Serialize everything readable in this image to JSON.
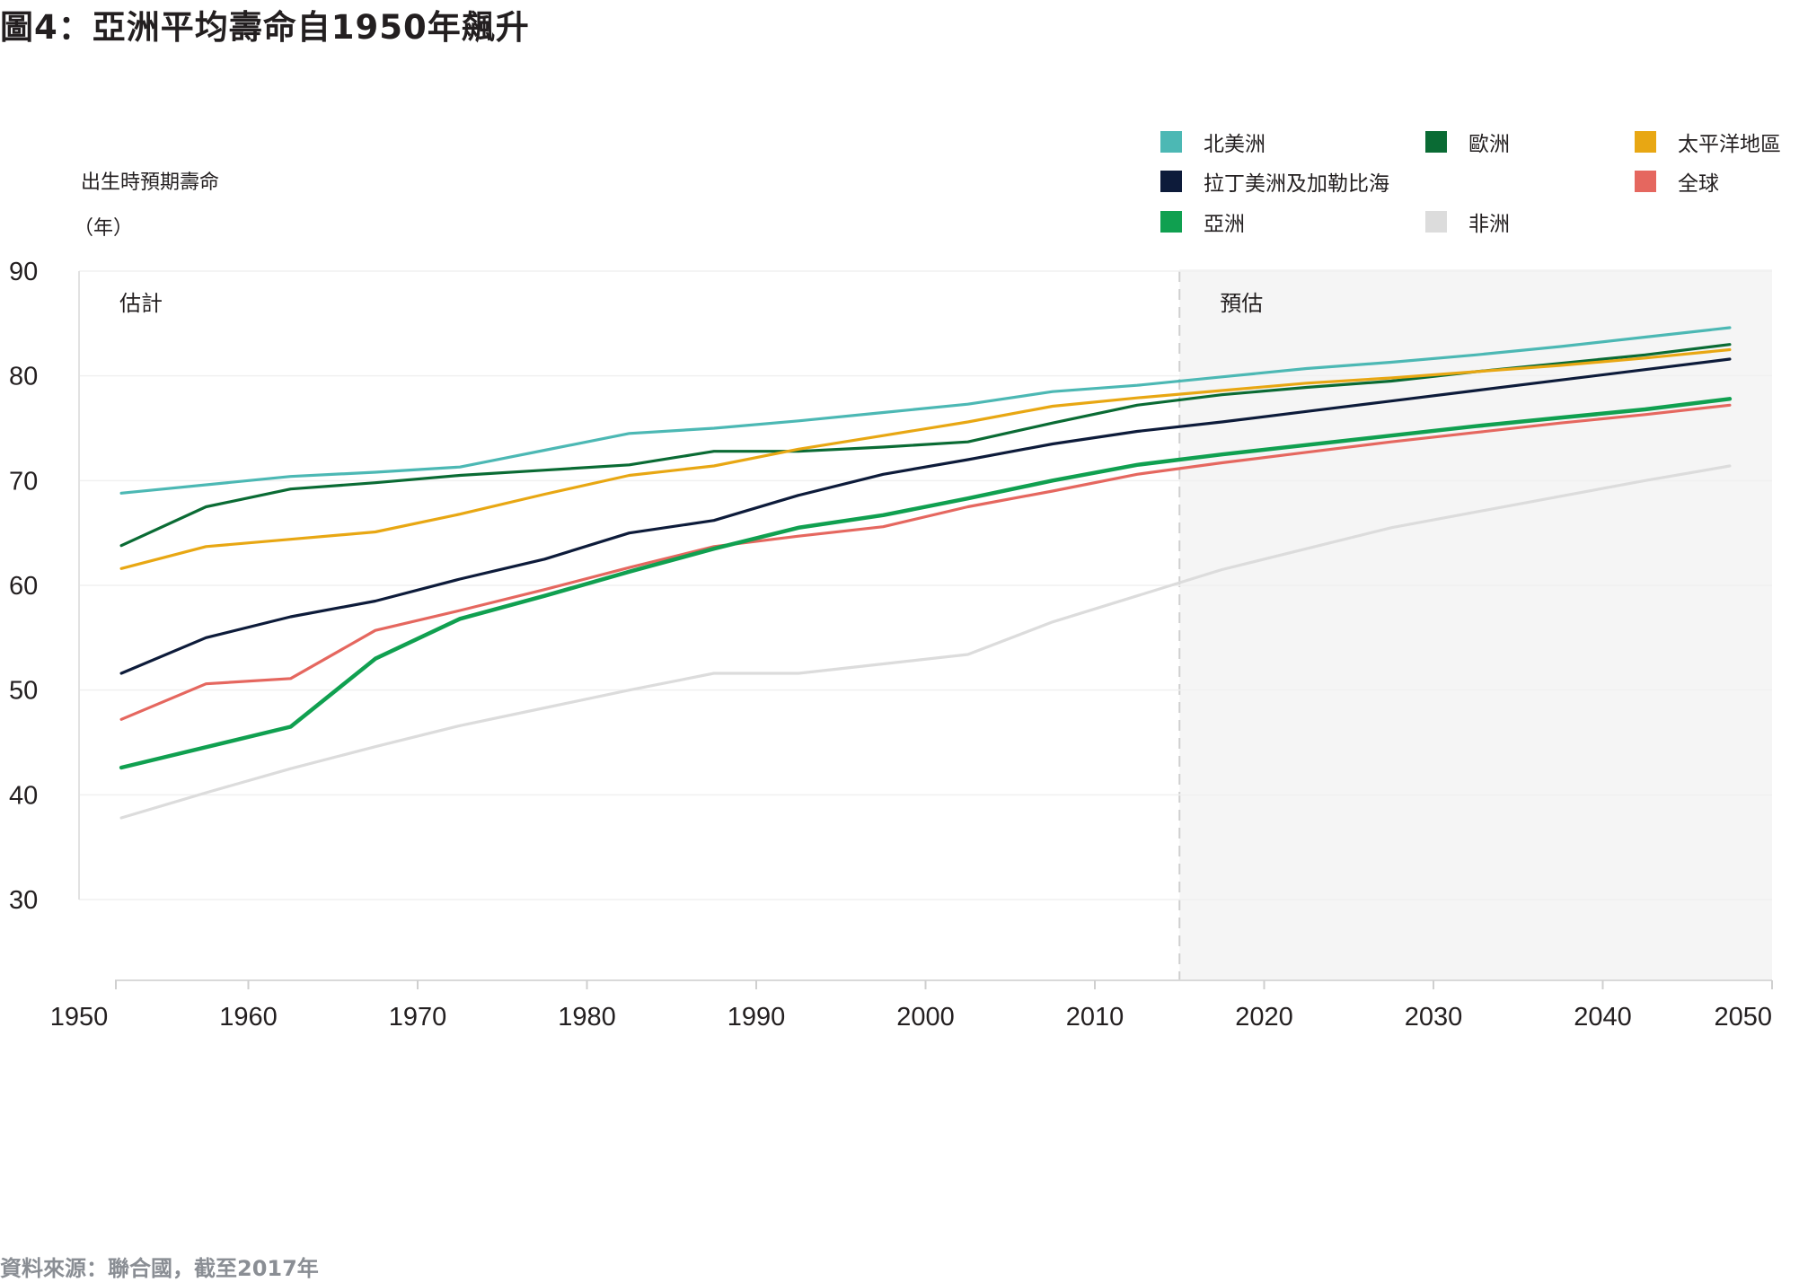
{
  "title": "圖4：亞洲平均壽命自1950年飆升",
  "source": "資料來源：聯合國，截至2017年",
  "y_axis_label_line1": "出生時預期壽命",
  "y_axis_label_line2": "（年）",
  "chart_data": {
    "type": "line",
    "title": "圖4：亞洲平均壽命自1950年飆升",
    "ylabel": "出生時預期壽命（年）",
    "xlim": [
      1950,
      2050
    ],
    "ylim": [
      30,
      90
    ],
    "x_ticks": [
      "1950",
      "1960",
      "1970",
      "1980",
      "1990",
      "2000",
      "2010",
      "2020",
      "2030",
      "2040",
      "2050"
    ],
    "y_ticks": [
      "30",
      "40",
      "50",
      "60",
      "70",
      "80",
      "90"
    ],
    "regions": [
      {
        "label": "估計",
        "from": 1950,
        "to": 2015,
        "shaded": false
      },
      {
        "label": "預估",
        "from": 2015,
        "to": 2050,
        "shaded": true
      }
    ],
    "legend_position": "top-right",
    "series": [
      {
        "name": "北美洲",
        "color": "#4cb8b4",
        "x": [
          1952.5,
          1962.5,
          1967.5,
          1972.5,
          1977.5,
          1982.5,
          1987.5,
          1992.5,
          1997.5,
          2002.5,
          2007.5,
          2012.5,
          2017.5,
          2022.5,
          2027.5,
          2032.5,
          2037.5,
          2042.5,
          2047.5
        ],
        "y": [
          68.8,
          70.4,
          70.8,
          71.3,
          72.9,
          74.5,
          75.0,
          75.7,
          76.5,
          77.3,
          78.5,
          79.1,
          79.9,
          80.7,
          81.3,
          82.0,
          82.8,
          83.7,
          84.6
        ]
      },
      {
        "name": "歐洲",
        "color": "#0a6b34",
        "x": [
          1952.5,
          1957.5,
          1962.5,
          1967.5,
          1972.5,
          1977.5,
          1982.5,
          1987.5,
          1992.5,
          1997.5,
          2002.5,
          2007.5,
          2012.5,
          2017.5,
          2022.5,
          2027.5,
          2032.5,
          2037.5,
          2042.5,
          2047.5
        ],
        "y": [
          63.8,
          67.5,
          69.2,
          69.8,
          70.5,
          71.0,
          71.5,
          72.8,
          72.8,
          73.2,
          73.7,
          75.5,
          77.2,
          78.2,
          78.9,
          79.5,
          80.4,
          81.2,
          82.0,
          83.0
        ]
      },
      {
        "name": "太平洋地區",
        "color": "#e8a713",
        "x": [
          1952.5,
          1957.5,
          1962.5,
          1967.5,
          1972.5,
          1977.5,
          1982.5,
          1987.5,
          1992.5,
          1997.5,
          2002.5,
          2007.5,
          2012.5,
          2017.5,
          2022.5,
          2027.5,
          2032.5,
          2037.5,
          2042.5,
          2047.5
        ],
        "y": [
          61.6,
          63.7,
          64.4,
          65.1,
          66.8,
          68.7,
          70.5,
          71.4,
          73.0,
          74.3,
          75.6,
          77.1,
          77.9,
          78.6,
          79.3,
          79.8,
          80.4,
          81.0,
          81.7,
          82.5
        ]
      },
      {
        "name": "拉丁美洲及加勒比海",
        "color": "#0d1b3a",
        "x": [
          1952.5,
          1957.5,
          1962.5,
          1967.5,
          1972.5,
          1977.5,
          1982.5,
          1987.5,
          1992.5,
          1997.5,
          2002.5,
          2007.5,
          2012.5,
          2017.5,
          2022.5,
          2027.5,
          2032.5,
          2037.5,
          2042.5,
          2047.5
        ],
        "y": [
          51.6,
          55.0,
          57.0,
          58.5,
          60.6,
          62.5,
          65.0,
          66.2,
          68.6,
          70.6,
          72.0,
          73.5,
          74.7,
          75.6,
          76.6,
          77.6,
          78.6,
          79.6,
          80.6,
          81.6
        ]
      },
      {
        "name": "全球",
        "color": "#e5675f",
        "x": [
          1952.5,
          1957.5,
          1962.5,
          1967.5,
          1972.5,
          1977.5,
          1982.5,
          1987.5,
          1992.5,
          1997.5,
          2002.5,
          2007.5,
          2012.5,
          2017.5,
          2022.5,
          2027.5,
          2032.5,
          2037.5,
          2042.5,
          2047.5
        ],
        "y": [
          47.2,
          50.6,
          51.1,
          55.7,
          57.6,
          59.6,
          61.7,
          63.7,
          64.7,
          65.6,
          67.5,
          69.0,
          70.6,
          71.7,
          72.7,
          73.7,
          74.6,
          75.5,
          76.3,
          77.2
        ]
      },
      {
        "name": "亞洲",
        "color": "#10a050",
        "x": [
          1952.5,
          1962.5,
          1967.5,
          1972.5,
          1977.5,
          1982.5,
          1987.5,
          1992.5,
          1997.5,
          2002.5,
          2007.5,
          2012.5,
          2017.5,
          2022.5,
          2027.5,
          2032.5,
          2037.5,
          2042.5,
          2047.5
        ],
        "y": [
          42.6,
          46.5,
          53.0,
          56.8,
          59.0,
          61.3,
          63.5,
          65.5,
          66.7,
          68.3,
          70.0,
          71.5,
          72.5,
          73.4,
          74.3,
          75.2,
          76.0,
          76.8,
          77.8
        ]
      },
      {
        "name": "非洲",
        "color": "#dcdcdc",
        "x": [
          1952.5,
          1957.5,
          1962.5,
          1967.5,
          1972.5,
          1977.5,
          1982.5,
          1987.5,
          1992.5,
          1997.5,
          2002.5,
          2007.5,
          2012.5,
          2017.5,
          2022.5,
          2027.5,
          2032.5,
          2037.5,
          2042.5,
          2047.5
        ],
        "y": [
          37.8,
          40.2,
          42.5,
          44.6,
          46.6,
          48.3,
          50.0,
          51.6,
          51.6,
          52.5,
          53.4,
          56.5,
          59.0,
          61.5,
          63.5,
          65.5,
          67.0,
          68.5,
          70.0,
          71.4
        ]
      }
    ]
  },
  "legend": [
    {
      "label": "北美洲",
      "color": "#4cb8b4",
      "col": 0,
      "row": 0
    },
    {
      "label": "歐洲",
      "color": "#0a6b34",
      "col": 1,
      "row": 0
    },
    {
      "label": "太平洋地區",
      "color": "#e8a713",
      "col": 2,
      "row": 0
    },
    {
      "label": "拉丁美洲及加勒比海",
      "color": "#0d1b3a",
      "col": 0,
      "row": 1
    },
    {
      "label": "全球",
      "color": "#e5675f",
      "col": 2,
      "row": 1
    },
    {
      "label": "亞洲",
      "color": "#10a050",
      "col": 0,
      "row": 2
    },
    {
      "label": "非洲",
      "color": "#dcdcdc",
      "col": 1,
      "row": 2
    }
  ]
}
